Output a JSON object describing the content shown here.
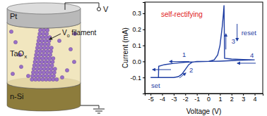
{
  "diagram": {
    "layers": [
      {
        "main": "Pt"
      },
      {
        "main": "TaO",
        "sub": "x"
      },
      {
        "main": "n-Si"
      }
    ],
    "filament_label": {
      "main": "V",
      "sub": "o",
      "rest": " filament"
    },
    "source_label": "V"
  },
  "chart_data": {
    "type": "line",
    "x_label": "Voltage (V)",
    "y_label": "Current (mA)",
    "xlim": [
      -5.5,
      4.7
    ],
    "ylim": [
      -0.2,
      0.37
    ],
    "xticks": [
      -5,
      -4,
      -3,
      -2,
      -1,
      0,
      1,
      2,
      3,
      4
    ],
    "yticks": [
      -0.1,
      {
        "value": 0,
        "label": "0.0"
      },
      0.1,
      0.2,
      0.3
    ],
    "x": [
      0,
      -1,
      -2,
      -3,
      -3.8,
      -4.3,
      -4.32,
      -4.6,
      -5,
      -4,
      -3,
      -2.6,
      -2.3,
      -2,
      -1.7,
      -1.4,
      -1,
      0,
      0.5,
      0.8,
      1,
      1.2,
      1.3,
      1.35,
      1.4,
      2,
      3,
      4,
      3,
      2,
      1,
      0
    ],
    "series": [
      {
        "color": "#1f3ea3",
        "values": [
          0,
          -0.002,
          -0.005,
          -0.012,
          -0.02,
          -0.03,
          -0.1,
          -0.1,
          -0.1,
          -0.1,
          -0.1,
          -0.095,
          -0.08,
          -0.05,
          -0.02,
          -0.005,
          0,
          0,
          0.01,
          0.04,
          0.1,
          0.22,
          0.3,
          0.35,
          0.02,
          0.015,
          0.012,
          0.01,
          0.008,
          0.005,
          0.002,
          0
        ]
      }
    ],
    "annotations": [
      {
        "text": "self-rectifying",
        "x": -4.1,
        "y": 0.28,
        "color": "#e0201b"
      },
      {
        "text": "1",
        "x": -2.27,
        "y": 0.03,
        "color": "#1f3ea3"
      },
      {
        "text": "2",
        "x": -1.65,
        "y": -0.068,
        "color": "#1f3ea3"
      },
      {
        "text": "set",
        "x": -4.95,
        "y": -0.165,
        "color": "#1f3ea3"
      },
      {
        "text": "3",
        "x": 2.0,
        "y": 0.11,
        "color": "#1f3ea3"
      },
      {
        "text": "reset",
        "x": 2.85,
        "y": 0.164,
        "color": "#1f3ea3"
      },
      {
        "text": "4",
        "x": 3.6,
        "y": 0.024,
        "color": "#1f3ea3"
      }
    ]
  }
}
